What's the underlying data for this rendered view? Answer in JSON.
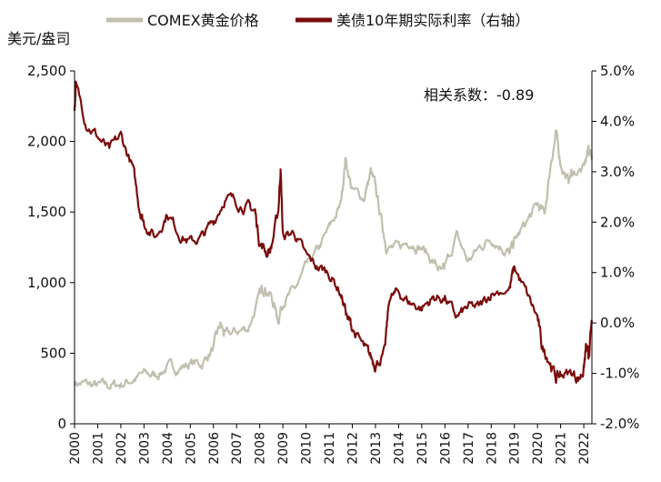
{
  "chart_data": {
    "type": "line",
    "unit_label": "美元/盎司",
    "annotation": "相关系数：-0.89",
    "x_axis": {
      "range": [
        2000.0,
        2022.35
      ],
      "tick_labels": [
        "2000",
        "2001",
        "2002",
        "2003",
        "2004",
        "2005",
        "2006",
        "2007",
        "2008",
        "2009",
        "2010",
        "2011",
        "2012",
        "2013",
        "2014",
        "2015",
        "2016",
        "2017",
        "2018",
        "2019",
        "2020",
        "2021",
        "2022"
      ]
    },
    "left_axis": {
      "range": [
        0,
        2500
      ],
      "ticks": [
        0,
        500,
        1000,
        1500,
        2000,
        2500
      ],
      "tick_labels": [
        "0",
        "500",
        "1,000",
        "1,500",
        "2,000",
        "2,500"
      ]
    },
    "right_axis": {
      "range": [
        -2.0,
        5.0
      ],
      "ticks": [
        -2,
        -1,
        0,
        1,
        2,
        3,
        4,
        5
      ],
      "tick_labels": [
        "-2.0%",
        "-1.0%",
        "0.0%",
        "1.0%",
        "2.0%",
        "3.0%",
        "4.0%",
        "5.0%"
      ]
    },
    "series": [
      {
        "name": "COMEX黄金价格",
        "axis": "left",
        "color": "#c0bfb0",
        "x": [
          2000.0,
          2000.5,
          2001.0,
          2001.5,
          2002.0,
          2002.5,
          2003.0,
          2003.5,
          2004.0,
          2004.5,
          2005.0,
          2005.5,
          2006.0,
          2006.3,
          2006.5,
          2007.0,
          2007.5,
          2008.0,
          2008.2,
          2008.5,
          2008.8,
          2009.0,
          2009.5,
          2010.0,
          2010.5,
          2011.0,
          2011.5,
          2011.7,
          2012.0,
          2012.5,
          2012.8,
          2013.0,
          2013.3,
          2013.5,
          2014.0,
          2014.5,
          2015.0,
          2015.5,
          2015.9,
          2016.0,
          2016.5,
          2017.0,
          2017.5,
          2018.0,
          2018.5,
          2018.8,
          2019.0,
          2019.5,
          2020.0,
          2020.3,
          2020.6,
          2020.8,
          2021.0,
          2021.3,
          2021.5,
          2022.0,
          2022.2,
          2022.35
        ],
        "values": [
          295,
          280,
          265,
          270,
          280,
          315,
          350,
          345,
          400,
          395,
          430,
          425,
          540,
          700,
          620,
          650,
          680,
          900,
          980,
          900,
          740,
          880,
          940,
          1100,
          1220,
          1380,
          1550,
          1880,
          1650,
          1600,
          1780,
          1670,
          1400,
          1250,
          1240,
          1300,
          1250,
          1150,
          1060,
          1100,
          1330,
          1150,
          1250,
          1320,
          1250,
          1200,
          1290,
          1420,
          1550,
          1480,
          1880,
          2050,
          1850,
          1720,
          1780,
          1800,
          1950,
          1900
        ]
      },
      {
        "name": "美债10年期实际利率（右轴）",
        "axis": "right",
        "color": "#7a0c0c",
        "x": [
          2000.0,
          2000.05,
          2000.5,
          2001.0,
          2001.5,
          2002.0,
          2002.5,
          2002.8,
          2003.0,
          2003.5,
          2004.0,
          2004.5,
          2005.0,
          2005.5,
          2006.0,
          2006.5,
          2007.0,
          2007.5,
          2007.8,
          2008.0,
          2008.3,
          2008.5,
          2008.8,
          2008.9,
          2009.0,
          2009.5,
          2010.0,
          2010.5,
          2011.0,
          2011.5,
          2011.8,
          2012.0,
          2012.5,
          2012.8,
          2013.0,
          2013.4,
          2013.6,
          2014.0,
          2014.5,
          2015.0,
          2015.5,
          2016.0,
          2016.5,
          2017.0,
          2017.5,
          2018.0,
          2018.8,
          2019.0,
          2019.5,
          2020.0,
          2020.2,
          2020.5,
          2020.8,
          2021.0,
          2021.5,
          2021.8,
          2022.0,
          2022.1,
          2022.2,
          2022.35
        ],
        "values": [
          4.2,
          4.7,
          4.0,
          3.7,
          3.4,
          3.7,
          3.1,
          2.3,
          2.0,
          1.7,
          2.2,
          1.8,
          1.6,
          1.7,
          2.0,
          2.5,
          2.4,
          2.3,
          2.2,
          1.6,
          1.4,
          1.5,
          2.2,
          3.1,
          1.7,
          1.8,
          1.3,
          1.1,
          1.0,
          0.6,
          0.1,
          -0.1,
          -0.5,
          -0.7,
          -0.8,
          -0.6,
          0.5,
          0.6,
          0.4,
          0.3,
          0.5,
          0.5,
          0.1,
          0.3,
          0.3,
          0.6,
          0.7,
          1.1,
          0.6,
          0.1,
          -0.5,
          -0.7,
          -1.1,
          -1.0,
          -1.0,
          -1.1,
          -0.9,
          -0.5,
          -0.7,
          0.0
        ]
      }
    ]
  }
}
